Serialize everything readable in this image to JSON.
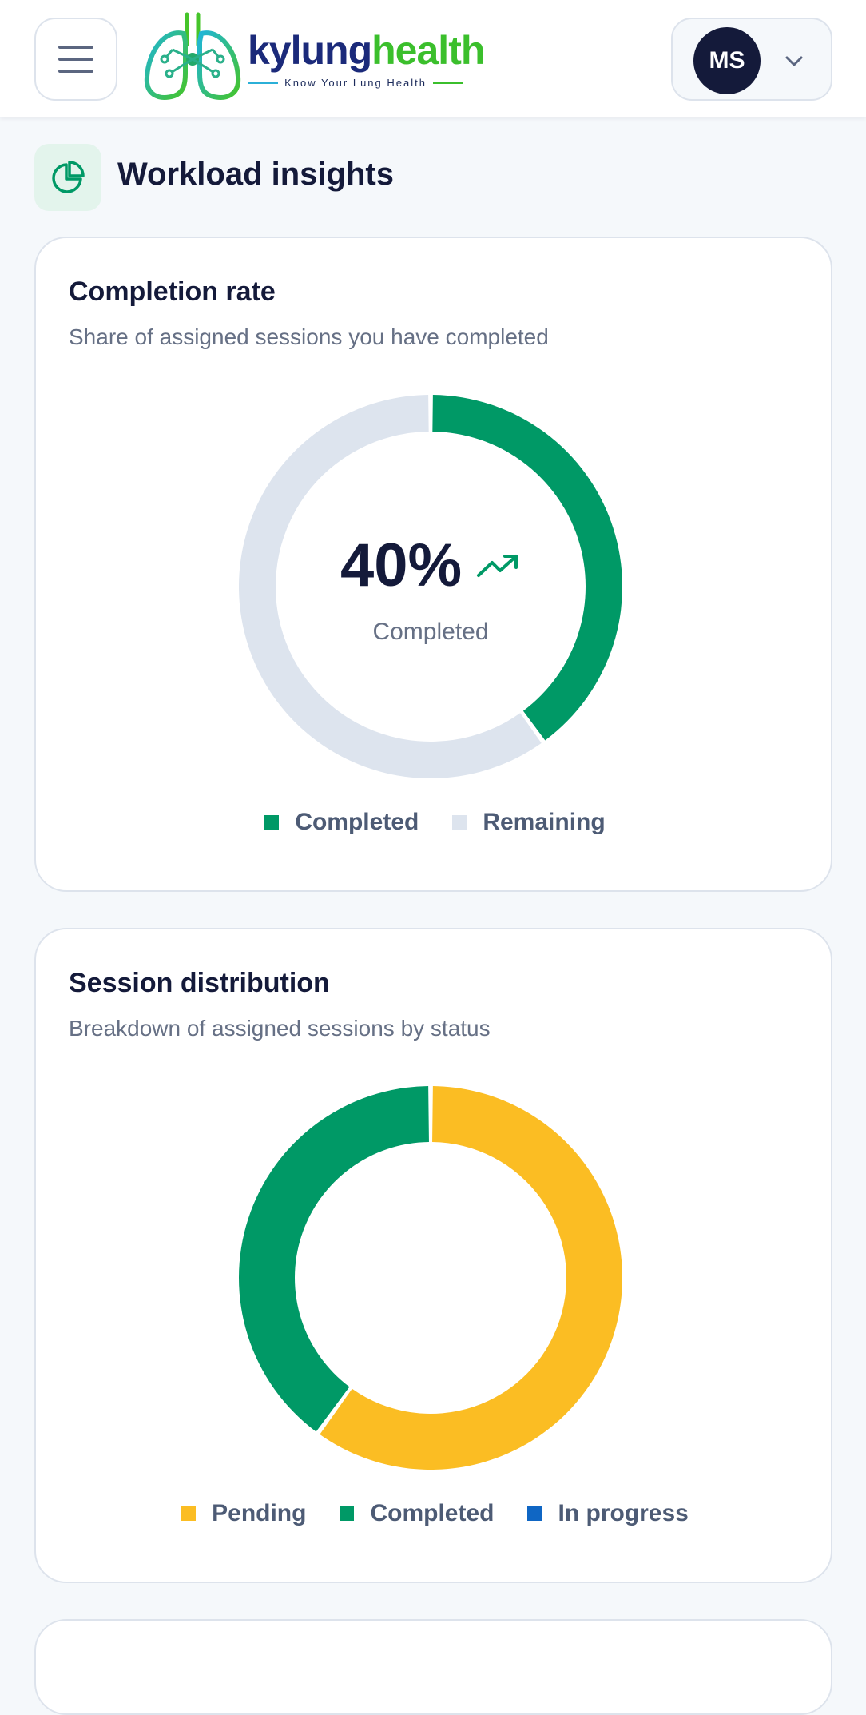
{
  "header": {
    "logo": {
      "name_part1": "kylung",
      "name_part2": "health",
      "tagline": "Know Your Lung Health"
    },
    "menu_icon": "hamburger-icon",
    "user": {
      "initials": "MS",
      "dropdown_icon": "chevron-down-icon"
    }
  },
  "section": {
    "title": "Workload insights",
    "icon": "pie-chart-icon"
  },
  "cards": [
    {
      "title": "Completion rate",
      "subtitle": "Share of assigned sessions you have completed",
      "center_value": "40%",
      "center_label": "Completed",
      "trend_icon": "trending-up-icon"
    },
    {
      "title": "Session distribution",
      "subtitle": "Breakdown of assigned sessions by status"
    }
  ],
  "colors": {
    "completed": "#009966",
    "remaining": "#dde4ee",
    "pending": "#fbbd23",
    "in_progress": "#0f66c4"
  },
  "chart_data": [
    {
      "type": "pie",
      "categories": [
        "Completed",
        "Remaining"
      ],
      "values": [
        40,
        60
      ],
      "colors": [
        "#009966",
        "#dde4ee"
      ],
      "legend": "bottom"
    },
    {
      "type": "pie",
      "categories": [
        "Pending",
        "Completed",
        "In progress"
      ],
      "values": [
        60,
        40,
        0
      ],
      "colors": [
        "#fbbd23",
        "#009966",
        "#0f66c4"
      ],
      "legend": "bottom"
    }
  ]
}
